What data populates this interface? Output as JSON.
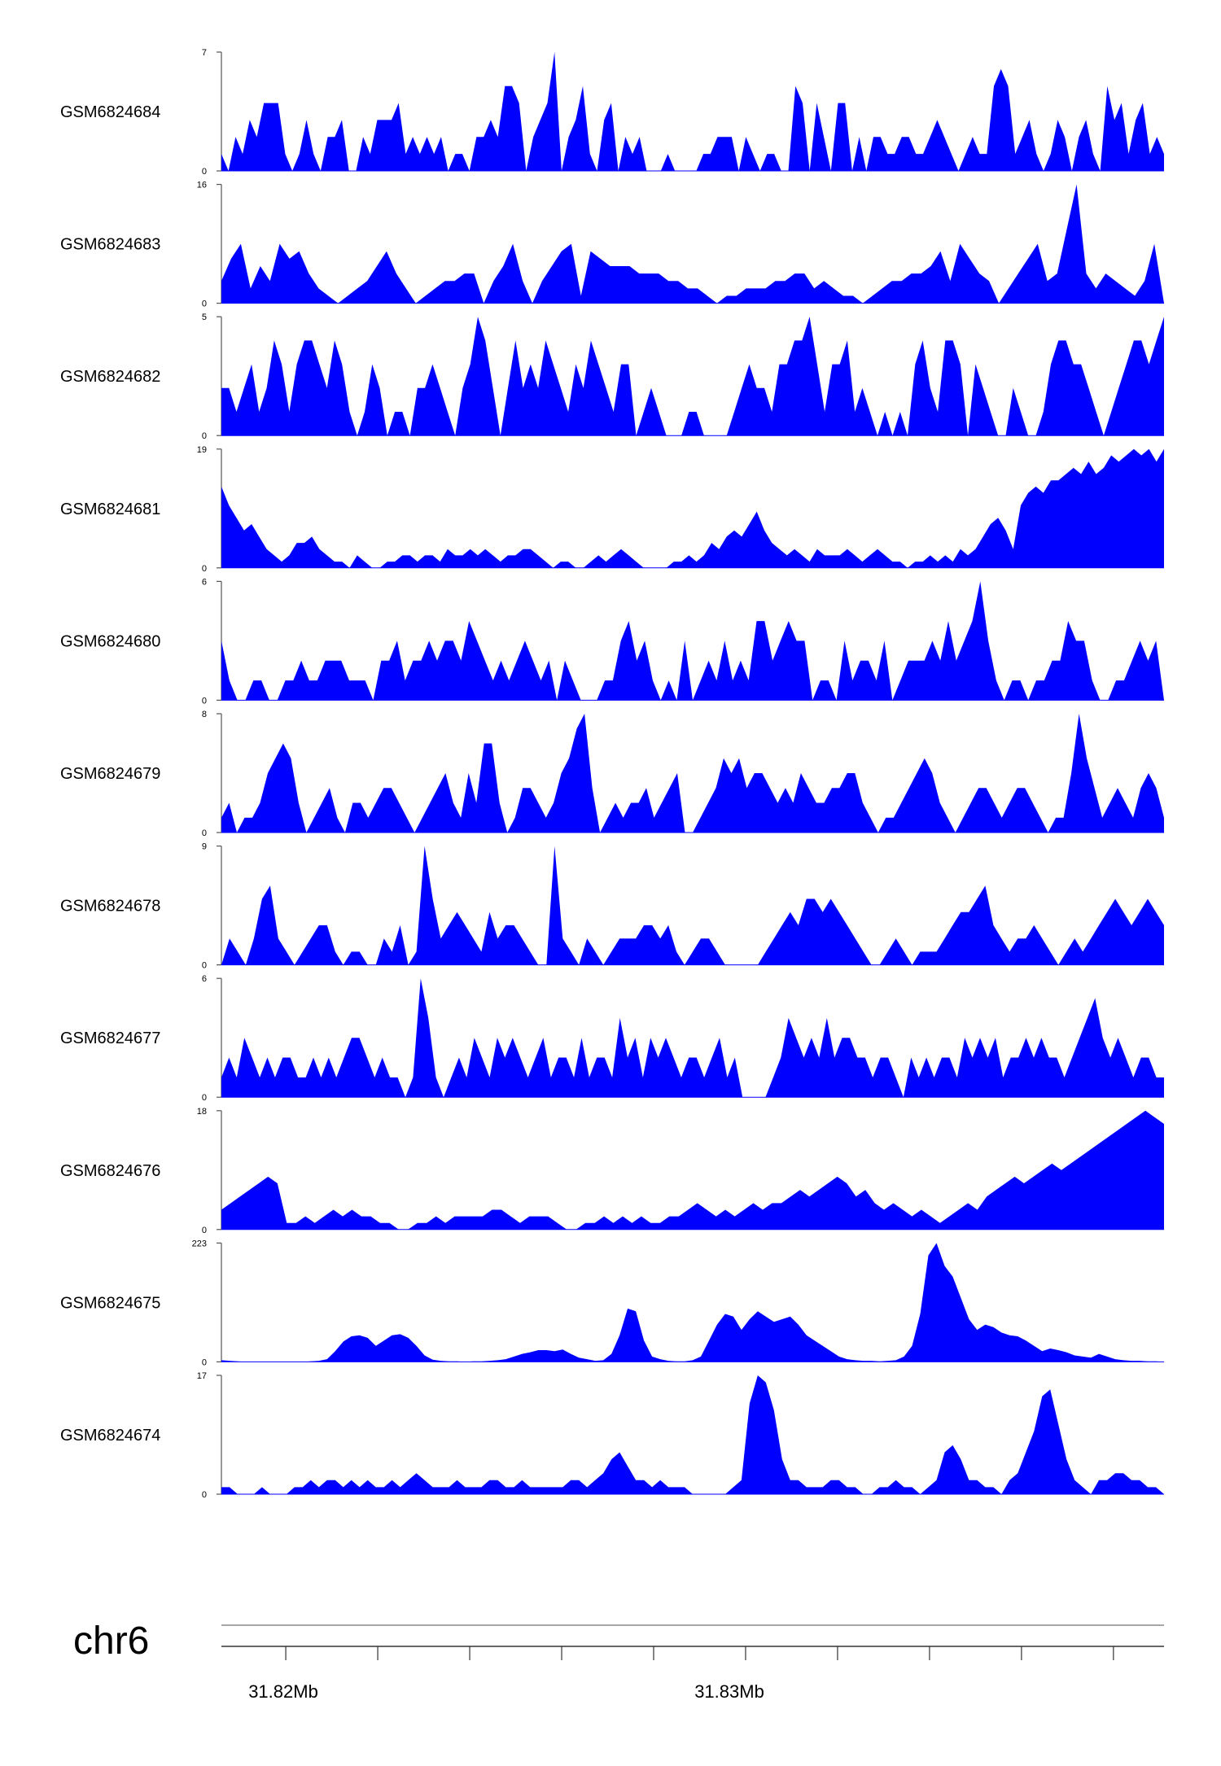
{
  "chart_data": {
    "type": "area",
    "title": "",
    "chromosome": "chr6",
    "x_range_mb": [
      31.8186,
      31.8391
    ],
    "x_ticks": [
      {
        "value": 31.82,
        "label": "31.82Mb"
      },
      {
        "value": 31.83,
        "label": "31.83Mb"
      }
    ],
    "fill_color": "#0000ff",
    "tracks": [
      {
        "name": "GSM6824684",
        "ymax": 7,
        "ymin": 0,
        "values": [
          1,
          0,
          2,
          1,
          3,
          2,
          4,
          4,
          4,
          1,
          0,
          1,
          3,
          1,
          0,
          2,
          2,
          3,
          0,
          0,
          2,
          1,
          3,
          3,
          3,
          4,
          1,
          2,
          1,
          2,
          1,
          2,
          0,
          1,
          1,
          0,
          2,
          2,
          3,
          2,
          5,
          5,
          4,
          0,
          2,
          3,
          4,
          7,
          0,
          2,
          3,
          5,
          1,
          0,
          3,
          4,
          0,
          2,
          1,
          2,
          0,
          0,
          0,
          1,
          0,
          0,
          0,
          0,
          1,
          1,
          2,
          2,
          2,
          0,
          2,
          1,
          0,
          1,
          1,
          0,
          0,
          5,
          4,
          0,
          4,
          2,
          0,
          4,
          4,
          0,
          2,
          0,
          2,
          2,
          1,
          1,
          2,
          2,
          1,
          1,
          2,
          3,
          2,
          1,
          0,
          1,
          2,
          1,
          1,
          5,
          6,
          5,
          1,
          2,
          3,
          1,
          0,
          1,
          3,
          2,
          0,
          2,
          3,
          1,
          0,
          5,
          3,
          4,
          1,
          3,
          4,
          1,
          2,
          1
        ]
      },
      {
        "name": "GSM6824683",
        "ymax": 16,
        "ymin": 0,
        "values": [
          3,
          6,
          8,
          2,
          5,
          3,
          8,
          6,
          7,
          4,
          2,
          1,
          0,
          1,
          2,
          3,
          5,
          7,
          4,
          2,
          0,
          1,
          2,
          3,
          3,
          4,
          4,
          0,
          3,
          5,
          8,
          3,
          0,
          3,
          5,
          7,
          8,
          1,
          7,
          6,
          5,
          5,
          5,
          4,
          4,
          4,
          3,
          3,
          2,
          2,
          1,
          0,
          1,
          1,
          2,
          2,
          2,
          3,
          3,
          4,
          4,
          2,
          3,
          2,
          1,
          1,
          0,
          1,
          2,
          3,
          3,
          4,
          4,
          5,
          7,
          3,
          8,
          6,
          4,
          3,
          0,
          2,
          4,
          6,
          8,
          3,
          4,
          10,
          16,
          4,
          2,
          4,
          3,
          2,
          1,
          3,
          8,
          0
        ]
      },
      {
        "name": "GSM6824682",
        "ymax": 5,
        "ymin": 0,
        "values": [
          2,
          2,
          1,
          2,
          3,
          1,
          2,
          4,
          3,
          1,
          3,
          4,
          4,
          3,
          2,
          4,
          3,
          1,
          0,
          1,
          3,
          2,
          0,
          1,
          1,
          0,
          2,
          2,
          3,
          2,
          1,
          0,
          2,
          3,
          5,
          4,
          2,
          0,
          2,
          4,
          2,
          3,
          2,
          4,
          3,
          2,
          1,
          3,
          2,
          4,
          3,
          2,
          1,
          3,
          3,
          0,
          1,
          2,
          1,
          0,
          0,
          0,
          1,
          1,
          0,
          0,
          0,
          0,
          1,
          2,
          3,
          2,
          2,
          1,
          3,
          3,
          4,
          4,
          5,
          3,
          1,
          3,
          3,
          4,
          1,
          2,
          1,
          0,
          1,
          0,
          1,
          0,
          3,
          4,
          2,
          1,
          4,
          4,
          3,
          0,
          3,
          2,
          1,
          0,
          0,
          2,
          1,
          0,
          0,
          1,
          3,
          4,
          4,
          3,
          3,
          2,
          1,
          0,
          1,
          2,
          3,
          4,
          4,
          3,
          4,
          5
        ]
      },
      {
        "name": "GSM6824681",
        "ymax": 19,
        "ymin": 0,
        "values": [
          13,
          10,
          8,
          6,
          7,
          5,
          3,
          2,
          1,
          2,
          4,
          4,
          5,
          3,
          2,
          1,
          1,
          0,
          2,
          1,
          0,
          0,
          1,
          1,
          2,
          2,
          1,
          2,
          2,
          1,
          3,
          2,
          2,
          3,
          2,
          3,
          2,
          1,
          2,
          2,
          3,
          3,
          2,
          1,
          0,
          1,
          1,
          0,
          0,
          1,
          2,
          1,
          2,
          3,
          2,
          1,
          0,
          0,
          0,
          0,
          1,
          1,
          2,
          1,
          2,
          4,
          3,
          5,
          6,
          5,
          7,
          9,
          6,
          4,
          3,
          2,
          3,
          2,
          1,
          3,
          2,
          2,
          2,
          3,
          2,
          1,
          2,
          3,
          2,
          1,
          1,
          0,
          1,
          1,
          2,
          1,
          2,
          1,
          3,
          2,
          3,
          5,
          7,
          8,
          6,
          3,
          10,
          12,
          13,
          12,
          14,
          14,
          15,
          16,
          15,
          17,
          15,
          16,
          18,
          17,
          18,
          19,
          18,
          19,
          17,
          19
        ]
      },
      {
        "name": "GSM6824680",
        "ymax": 6,
        "ymin": 0,
        "values": [
          3,
          1,
          0,
          0,
          1,
          1,
          0,
          0,
          1,
          1,
          2,
          1,
          1,
          2,
          2,
          2,
          1,
          1,
          1,
          0,
          2,
          2,
          3,
          1,
          2,
          2,
          3,
          2,
          3,
          3,
          2,
          4,
          3,
          2,
          1,
          2,
          1,
          2,
          3,
          2,
          1,
          2,
          0,
          2,
          1,
          0,
          0,
          0,
          1,
          1,
          3,
          4,
          2,
          3,
          1,
          0,
          1,
          0,
          3,
          0,
          1,
          2,
          1,
          3,
          1,
          2,
          1,
          4,
          4,
          2,
          3,
          4,
          3,
          3,
          0,
          1,
          1,
          0,
          3,
          1,
          2,
          2,
          1,
          3,
          0,
          1,
          2,
          2,
          2,
          3,
          2,
          4,
          2,
          3,
          4,
          6,
          3,
          1,
          0,
          1,
          1,
          0,
          1,
          1,
          2,
          2,
          4,
          3,
          3,
          1,
          0,
          0,
          1,
          1,
          2,
          3,
          2,
          3,
          0
        ]
      },
      {
        "name": "GSM6824679",
        "ymax": 8,
        "ymin": 0,
        "values": [
          1,
          2,
          0,
          1,
          1,
          2,
          4,
          5,
          6,
          5,
          2,
          0,
          1,
          2,
          3,
          1,
          0,
          2,
          2,
          1,
          2,
          3,
          3,
          2,
          1,
          0,
          1,
          2,
          3,
          4,
          2,
          1,
          4,
          2,
          6,
          6,
          2,
          0,
          1,
          3,
          3,
          2,
          1,
          2,
          4,
          5,
          7,
          8,
          3,
          0,
          1,
          2,
          1,
          2,
          2,
          3,
          1,
          2,
          3,
          4,
          0,
          0,
          1,
          2,
          3,
          5,
          4,
          5,
          3,
          4,
          4,
          3,
          2,
          3,
          2,
          4,
          3,
          2,
          2,
          3,
          3,
          4,
          4,
          2,
          1,
          0,
          1,
          1,
          2,
          3,
          4,
          5,
          4,
          2,
          1,
          0,
          1,
          2,
          3,
          3,
          2,
          1,
          2,
          3,
          3,
          2,
          1,
          0,
          1,
          1,
          4,
          8,
          5,
          3,
          1,
          2,
          3,
          2,
          1,
          3,
          4,
          3,
          1
        ]
      },
      {
        "name": "GSM6824678",
        "ymax": 9,
        "ymin": 0,
        "values": [
          0,
          2,
          1,
          0,
          2,
          5,
          6,
          2,
          1,
          0,
          1,
          2,
          3,
          3,
          1,
          0,
          1,
          1,
          0,
          0,
          2,
          1,
          3,
          0,
          1,
          9,
          5,
          2,
          3,
          4,
          3,
          2,
          1,
          4,
          2,
          3,
          3,
          2,
          1,
          0,
          0,
          9,
          2,
          1,
          0,
          2,
          1,
          0,
          1,
          2,
          2,
          2,
          3,
          3,
          2,
          3,
          1,
          0,
          1,
          2,
          2,
          1,
          0,
          0,
          0,
          0,
          0,
          1,
          2,
          3,
          4,
          3,
          5,
          5,
          4,
          5,
          4,
          3,
          2,
          1,
          0,
          0,
          1,
          2,
          1,
          0,
          1,
          1,
          1,
          2,
          3,
          4,
          4,
          5,
          6,
          3,
          2,
          1,
          2,
          2,
          3,
          2,
          1,
          0,
          1,
          2,
          1,
          2,
          3,
          4,
          5,
          4,
          3,
          4,
          5,
          4,
          3
        ]
      },
      {
        "name": "GSM6824677",
        "ymax": 6,
        "ymin": 0,
        "values": [
          1,
          2,
          1,
          3,
          2,
          1,
          2,
          1,
          2,
          2,
          1,
          1,
          2,
          1,
          2,
          1,
          2,
          3,
          3,
          2,
          1,
          2,
          1,
          1,
          0,
          1,
          6,
          4,
          1,
          0,
          1,
          2,
          1,
          3,
          2,
          1,
          3,
          2,
          3,
          2,
          1,
          2,
          3,
          1,
          2,
          2,
          1,
          3,
          1,
          2,
          2,
          1,
          4,
          2,
          3,
          1,
          3,
          2,
          3,
          2,
          1,
          2,
          2,
          1,
          2,
          3,
          1,
          2,
          0,
          0,
          0,
          0,
          1,
          2,
          4,
          3,
          2,
          3,
          2,
          4,
          2,
          3,
          3,
          2,
          2,
          1,
          2,
          2,
          1,
          0,
          2,
          1,
          2,
          1,
          2,
          2,
          1,
          3,
          2,
          3,
          2,
          3,
          1,
          2,
          2,
          3,
          2,
          3,
          2,
          2,
          1,
          2,
          3,
          4,
          5,
          3,
          2,
          3,
          2,
          1,
          2,
          2,
          1,
          1
        ]
      },
      {
        "name": "GSM6824676",
        "ymax": 18,
        "ymin": 0,
        "values": [
          3,
          4,
          5,
          6,
          7,
          8,
          7,
          1,
          1,
          2,
          1,
          2,
          3,
          2,
          3,
          2,
          2,
          1,
          1,
          0,
          0,
          1,
          1,
          2,
          1,
          2,
          2,
          2,
          2,
          3,
          3,
          2,
          1,
          2,
          2,
          2,
          1,
          0,
          0,
          1,
          1,
          2,
          1,
          2,
          1,
          2,
          1,
          1,
          2,
          2,
          3,
          4,
          3,
          2,
          3,
          2,
          3,
          4,
          3,
          4,
          4,
          5,
          6,
          5,
          6,
          7,
          8,
          7,
          5,
          6,
          4,
          3,
          4,
          3,
          2,
          3,
          2,
          1,
          2,
          3,
          4,
          3,
          5,
          6,
          7,
          8,
          7,
          8,
          9,
          10,
          9,
          10,
          11,
          12,
          13,
          14,
          15,
          16,
          17,
          18,
          17,
          16
        ]
      },
      {
        "name": "GSM6824675",
        "ymax": 223,
        "ymin": 0,
        "values": [
          3,
          2,
          1,
          0,
          0,
          0,
          0,
          0,
          0,
          0,
          0,
          1,
          2,
          5,
          20,
          38,
          48,
          50,
          45,
          30,
          40,
          50,
          52,
          45,
          30,
          12,
          4,
          2,
          1,
          1,
          0,
          1,
          1,
          2,
          3,
          5,
          10,
          15,
          18,
          22,
          22,
          20,
          23,
          15,
          8,
          5,
          2,
          3,
          15,
          50,
          100,
          95,
          40,
          10,
          5,
          2,
          1,
          1,
          3,
          10,
          40,
          70,
          90,
          85,
          60,
          80,
          95,
          85,
          75,
          80,
          85,
          70,
          50,
          40,
          30,
          20,
          10,
          5,
          3,
          2,
          2,
          1,
          2,
          3,
          10,
          30,
          90,
          200,
          223,
          180,
          160,
          120,
          80,
          60,
          70,
          65,
          55,
          50,
          48,
          40,
          30,
          20,
          25,
          22,
          18,
          12,
          10,
          8,
          15,
          10,
          5,
          3,
          2,
          2,
          1,
          1,
          0
        ]
      },
      {
        "name": "GSM6824674",
        "ymax": 17,
        "ymin": 0,
        "values": [
          1,
          1,
          0,
          0,
          0,
          1,
          0,
          0,
          0,
          1,
          1,
          2,
          1,
          2,
          2,
          1,
          2,
          1,
          2,
          1,
          1,
          2,
          1,
          2,
          3,
          2,
          1,
          1,
          1,
          2,
          1,
          1,
          1,
          2,
          2,
          1,
          1,
          2,
          1,
          1,
          1,
          1,
          1,
          2,
          2,
          1,
          2,
          3,
          5,
          6,
          4,
          2,
          2,
          1,
          2,
          1,
          1,
          1,
          0,
          0,
          0,
          0,
          0,
          1,
          2,
          13,
          17,
          16,
          12,
          5,
          2,
          2,
          1,
          1,
          1,
          2,
          2,
          1,
          1,
          0,
          0,
          1,
          1,
          2,
          1,
          1,
          0,
          1,
          2,
          6,
          7,
          5,
          2,
          2,
          1,
          1,
          0,
          2,
          3,
          6,
          9,
          14,
          15,
          10,
          5,
          2,
          1,
          0,
          2,
          2,
          3,
          3,
          2,
          2,
          1,
          1,
          0
        ]
      }
    ]
  }
}
